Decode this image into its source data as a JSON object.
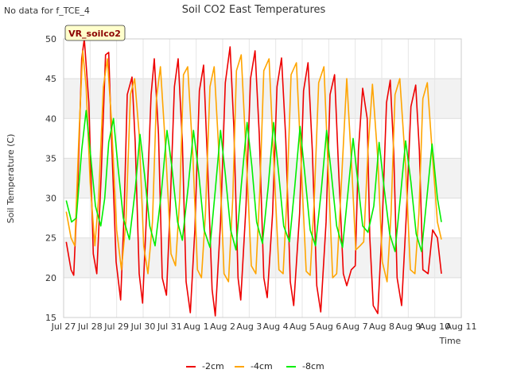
{
  "no_data_note": "No data for f_TCE_4",
  "chart_data": {
    "type": "line",
    "title": "Soil CO2 East Temperatures",
    "xlabel": "Time",
    "ylabel": "Soil Temperature (C)",
    "site_label": "VR_soilco2",
    "ylim": [
      15,
      50
    ],
    "xlim": [
      0,
      15
    ],
    "y_ticks": [
      15,
      20,
      25,
      30,
      35,
      40,
      45,
      50
    ],
    "x_ticks": [
      "Jul 27",
      "Jul 28",
      "Jul 29",
      "Jul 30",
      "Jul 31",
      "Aug 1",
      "Aug 2",
      "Aug 3",
      "Aug 4",
      "Aug 5",
      "Aug 6",
      "Aug 7",
      "Aug 8",
      "Aug 9",
      "Aug 10",
      "Aug 11"
    ],
    "grid": true,
    "legend_position": "bottom-center",
    "series": [
      {
        "name": "-2cm",
        "color": "#ee0000",
        "x": [
          0.1,
          0.28,
          0.38,
          0.55,
          0.68,
          0.78,
          0.95,
          1.12,
          1.25,
          1.42,
          1.58,
          1.7,
          1.78,
          1.98,
          2.15,
          2.28,
          2.4,
          2.58,
          2.7,
          2.85,
          2.98,
          3.12,
          3.3,
          3.42,
          3.58,
          3.72,
          3.88,
          4.02,
          4.18,
          4.32,
          4.48,
          4.62,
          4.78,
          4.95,
          5.12,
          5.28,
          5.42,
          5.6,
          5.72,
          5.92,
          6.1,
          6.28,
          6.42,
          6.58,
          6.68,
          6.88,
          7.05,
          7.22,
          7.38,
          7.55,
          7.68,
          7.88,
          8.05,
          8.22,
          8.38,
          8.55,
          8.68,
          8.9,
          9.05,
          9.22,
          9.38,
          9.55,
          9.7,
          9.9,
          10.05,
          10.22,
          10.38,
          10.55,
          10.68,
          10.85,
          11.0,
          11.12,
          11.28,
          11.45,
          11.55,
          11.68,
          11.85,
          12.02,
          12.18,
          12.32,
          12.45,
          12.58,
          12.75,
          12.92,
          13.1,
          13.28,
          13.42,
          13.55,
          13.75,
          13.92,
          14.1,
          14.25
        ],
        "values": [
          24.5,
          21.0,
          20.3,
          33.0,
          47.5,
          50.0,
          42.0,
          23.0,
          20.5,
          33.0,
          48.0,
          48.3,
          40.0,
          22.0,
          17.2,
          28.0,
          43.0,
          45.2,
          37.0,
          20.5,
          16.8,
          27.5,
          43.0,
          47.5,
          38.0,
          20.0,
          17.8,
          29.0,
          44.0,
          47.5,
          37.0,
          19.5,
          15.6,
          26.0,
          43.5,
          46.7,
          35.0,
          18.5,
          15.2,
          27.0,
          44.5,
          49.0,
          39.0,
          20.0,
          17.2,
          29.0,
          45.0,
          48.5,
          38.0,
          20.0,
          17.5,
          28.0,
          44.0,
          47.6,
          37.5,
          19.5,
          16.5,
          28.0,
          43.5,
          47.0,
          36.0,
          19.0,
          15.7,
          27.0,
          43.0,
          45.5,
          33.0,
          20.5,
          19.0,
          21.0,
          21.5,
          36.0,
          43.8,
          40.0,
          25.0,
          16.5,
          15.5,
          27.0,
          42.0,
          44.8,
          36.0,
          20.0,
          16.5,
          27.5,
          41.5,
          44.2,
          36.0,
          21.0,
          20.5,
          26.0,
          25.0,
          20.5
        ]
      },
      {
        "name": "-4cm",
        "color": "#ffa500",
        "x": [
          0.1,
          0.28,
          0.42,
          0.58,
          0.72,
          0.85,
          1.0,
          1.18,
          1.32,
          1.5,
          1.65,
          1.8,
          2.0,
          2.18,
          2.35,
          2.52,
          2.68,
          2.85,
          3.02,
          3.18,
          3.35,
          3.5,
          3.65,
          3.85,
          4.05,
          4.22,
          4.38,
          4.52,
          4.68,
          4.88,
          5.05,
          5.2,
          5.35,
          5.52,
          5.68,
          5.9,
          6.05,
          6.22,
          6.38,
          6.52,
          6.7,
          6.92,
          7.08,
          7.25,
          7.4,
          7.55,
          7.75,
          7.95,
          8.12,
          8.28,
          8.42,
          8.58,
          8.78,
          8.98,
          9.15,
          9.3,
          9.45,
          9.62,
          9.82,
          10.0,
          10.15,
          10.3,
          10.45,
          10.68,
          10.88,
          11.02,
          11.18,
          11.32,
          11.48,
          11.65,
          11.85,
          12.02,
          12.2,
          12.35,
          12.5,
          12.68,
          12.9,
          13.08,
          13.25,
          13.4,
          13.55,
          13.72,
          13.92,
          14.1,
          14.25
        ],
        "values": [
          28.3,
          25.0,
          24.0,
          38.0,
          48.5,
          44.0,
          32.0,
          24.0,
          30.0,
          44.0,
          47.5,
          40.0,
          26.0,
          21.0,
          27.0,
          43.0,
          45.0,
          38.0,
          24.0,
          20.5,
          27.0,
          42.5,
          46.5,
          36.0,
          23.0,
          21.5,
          30.0,
          45.5,
          46.5,
          35.0,
          21.0,
          20.0,
          28.0,
          44.0,
          46.5,
          33.0,
          20.5,
          19.5,
          30.0,
          46.0,
          48.0,
          33.0,
          21.5,
          20.5,
          31.0,
          46.0,
          47.5,
          33.0,
          21.0,
          20.5,
          30.0,
          45.5,
          47.0,
          33.0,
          20.8,
          20.3,
          29.5,
          44.5,
          46.5,
          32.0,
          20.0,
          20.5,
          30.0,
          45.0,
          33.0,
          23.5,
          24.0,
          24.5,
          36.0,
          44.3,
          35.0,
          22.0,
          19.5,
          28.0,
          43.0,
          45.0,
          34.0,
          21.0,
          20.5,
          28.0,
          42.5,
          44.5,
          35.0,
          27.0,
          24.8
        ]
      },
      {
        "name": "-8cm",
        "color": "#00ee00",
        "x": [
          0.1,
          0.3,
          0.48,
          0.68,
          0.85,
          1.0,
          1.2,
          1.4,
          1.55,
          1.7,
          1.88,
          2.05,
          2.25,
          2.48,
          2.7,
          2.88,
          3.05,
          3.25,
          3.45,
          3.68,
          3.9,
          4.08,
          4.3,
          4.48,
          4.7,
          4.9,
          5.1,
          5.3,
          5.52,
          5.72,
          5.92,
          6.1,
          6.3,
          6.5,
          6.7,
          6.92,
          7.1,
          7.28,
          7.5,
          7.72,
          7.92,
          8.1,
          8.3,
          8.52,
          8.72,
          8.92,
          9.1,
          9.3,
          9.5,
          9.72,
          9.92,
          10.1,
          10.3,
          10.52,
          10.72,
          10.92,
          11.1,
          11.28,
          11.48,
          11.7,
          11.9,
          12.1,
          12.3,
          12.5,
          12.7,
          12.9,
          13.1,
          13.3,
          13.5,
          13.7,
          13.9,
          14.1,
          14.25
        ],
        "values": [
          29.7,
          27.0,
          27.5,
          36.0,
          41.0,
          36.0,
          29.0,
          26.5,
          30.0,
          37.0,
          40.0,
          34.0,
          27.5,
          24.8,
          31.0,
          38.0,
          33.0,
          26.5,
          24.0,
          30.5,
          38.5,
          34.0,
          27.0,
          24.7,
          31.5,
          38.5,
          33.0,
          26.0,
          23.8,
          31.0,
          38.5,
          33.0,
          26.0,
          23.5,
          31.5,
          39.5,
          34.0,
          27.0,
          24.3,
          31.5,
          39.5,
          33.5,
          26.5,
          24.5,
          31.5,
          39.0,
          33.0,
          26.0,
          24.0,
          31.0,
          38.5,
          33.0,
          26.5,
          23.8,
          30.5,
          37.5,
          32.0,
          26.5,
          25.7,
          29.0,
          37.0,
          31.0,
          25.5,
          23.3,
          30.0,
          37.2,
          32.0,
          25.5,
          23.3,
          30.0,
          36.8,
          30.0,
          27.0
        ]
      }
    ]
  }
}
